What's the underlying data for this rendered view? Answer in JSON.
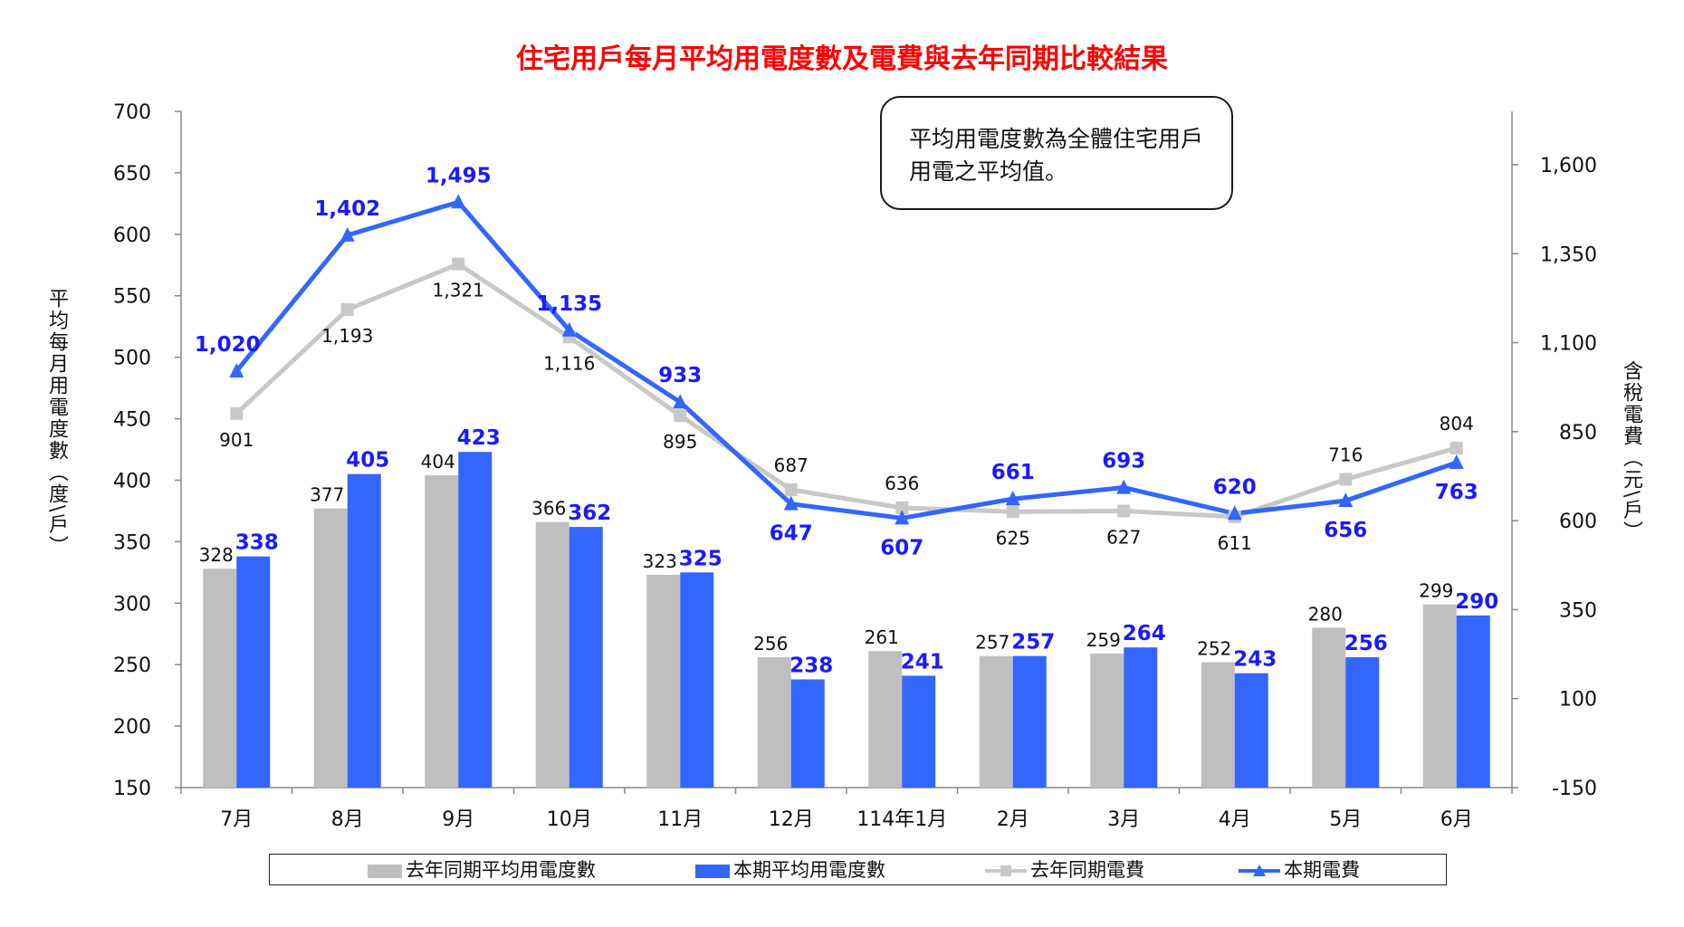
{
  "title": "住宅用戶每月平均用電度數及電費與去年同期比較結果",
  "note": "平均用電度數為全體住宅用戶用電之平均值。",
  "colors": {
    "title": "#ff0000",
    "prev_bar": "#bfbfbf",
    "curr_bar": "#3366ff",
    "prev_line": "#c8c8c8",
    "curr_line": "#3366ff",
    "curr_label": "#1a1aff"
  },
  "chart_data": {
    "type": "bar",
    "categories": [
      "7月",
      "8月",
      "9月",
      "10月",
      "11月",
      "12月",
      "114年1月",
      "2月",
      "3月",
      "4月",
      "5月",
      "6月"
    ],
    "ylabel": "平均每月用電度數（度\\戶）",
    "y2label": "含稅電費（元\\戶）",
    "ylim": [
      150,
      700
    ],
    "y_ticks": [
      150,
      200,
      250,
      300,
      350,
      400,
      450,
      500,
      550,
      600,
      650,
      700
    ],
    "y2lim": [
      -150,
      1750
    ],
    "y2_ticks": [
      -150,
      100,
      350,
      600,
      850,
      1100,
      1350,
      1600
    ],
    "y2_tick_labels": [
      "-150",
      "100",
      "350",
      "600",
      "850",
      "1,100",
      "1,350",
      "1,600"
    ],
    "legend_position": "bottom",
    "series": [
      {
        "name": "去年同期平均用電度數",
        "kind": "bar",
        "axis": "left",
        "values": [
          328,
          377,
          404,
          366,
          323,
          256,
          261,
          257,
          259,
          252,
          280,
          299
        ],
        "labels": [
          "328",
          "377",
          "404",
          "366",
          "323",
          "256",
          "261",
          "257",
          "259",
          "252",
          "280",
          "299"
        ]
      },
      {
        "name": "本期平均用電度數",
        "kind": "bar",
        "axis": "left",
        "values": [
          338,
          405,
          423,
          362,
          325,
          238,
          241,
          257,
          264,
          243,
          256,
          290
        ],
        "labels": [
          "338",
          "405",
          "423",
          "362",
          "325",
          "238",
          "241",
          "257",
          "264",
          "243",
          "256",
          "290"
        ]
      },
      {
        "name": "去年同期電費",
        "kind": "line",
        "marker": "square",
        "axis": "right",
        "values": [
          901,
          1193,
          1321,
          1116,
          895,
          687,
          636,
          625,
          627,
          611,
          716,
          804
        ],
        "labels": [
          "901",
          "1,193",
          "1,321",
          "1,116",
          "895",
          "687",
          "636",
          "625",
          "627",
          "611",
          "716",
          "804"
        ]
      },
      {
        "name": "本期電費",
        "kind": "line",
        "marker": "triangle",
        "axis": "right",
        "values": [
          1020,
          1402,
          1495,
          1135,
          933,
          647,
          607,
          661,
          693,
          620,
          656,
          763
        ],
        "labels": [
          "1,020",
          "1,402",
          "1,495",
          "1,135",
          "933",
          "647",
          "607",
          "661",
          "693",
          "620",
          "656",
          "763"
        ]
      }
    ]
  }
}
